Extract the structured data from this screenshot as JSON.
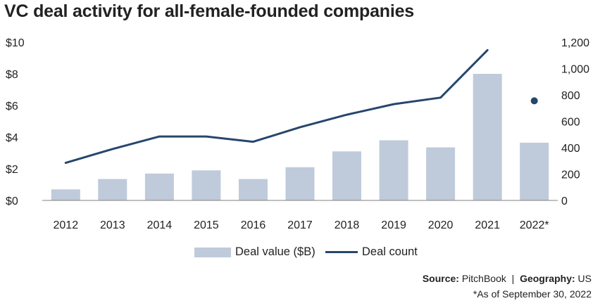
{
  "chart_data": {
    "type": "bar+line",
    "title": "VC deal activity for all-female-founded companies",
    "categories": [
      "2012",
      "2013",
      "2014",
      "2015",
      "2016",
      "2017",
      "2018",
      "2019",
      "2020",
      "2021",
      "2022*"
    ],
    "series": [
      {
        "name": "Deal value ($B)",
        "type": "bar",
        "axis": "left",
        "values": [
          0.7,
          1.35,
          1.7,
          1.9,
          1.35,
          2.1,
          3.1,
          3.8,
          3.35,
          8.0,
          3.65
        ]
      },
      {
        "name": "Deal count",
        "type": "line",
        "axis": "right",
        "values": [
          285,
          390,
          485,
          485,
          445,
          555,
          650,
          730,
          780,
          1140,
          null
        ]
      },
      {
        "name": "Deal count (2022*)",
        "type": "point",
        "axis": "right",
        "legend": false,
        "values": [
          null,
          null,
          null,
          null,
          null,
          null,
          null,
          null,
          null,
          null,
          755
        ]
      }
    ],
    "y_left": {
      "ticks": [
        "$0",
        "$2",
        "$4",
        "$6",
        "$8",
        "$10"
      ],
      "tick_values": [
        0,
        2,
        4,
        6,
        8,
        10
      ],
      "ylim": [
        0,
        10
      ]
    },
    "y_right": {
      "ticks": [
        "0",
        "200",
        "400",
        "600",
        "800",
        "1,000",
        "1,200"
      ],
      "tick_values": [
        0,
        200,
        400,
        600,
        800,
        1000,
        1200
      ],
      "ylim": [
        0,
        1200
      ]
    },
    "grid": false,
    "legend_position": "bottom-center"
  },
  "colors": {
    "bar": "#bfcbda",
    "line": "#26466d",
    "axis": "#808080"
  },
  "source": {
    "label": "Source:",
    "value": "PitchBook",
    "sep": "|",
    "geo_label": "Geography:",
    "geo_value": "US"
  },
  "note": "*As of September 30, 2022"
}
